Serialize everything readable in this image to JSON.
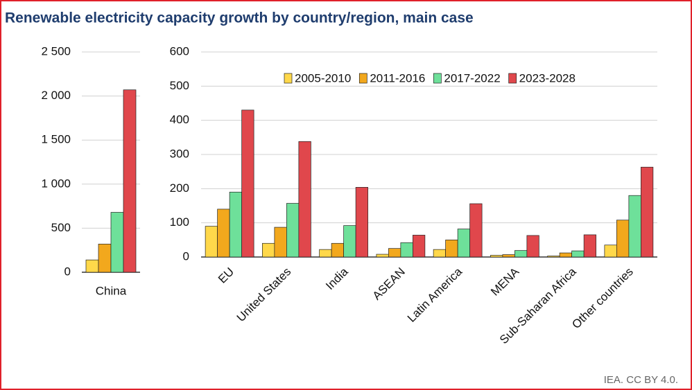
{
  "title": "Renewable electricity capacity growth by country/region, main case",
  "source": "IEA. CC BY 4.0.",
  "chart_data": [
    {
      "type": "bar",
      "categories": [
        "China"
      ],
      "series": [
        {
          "color": "#FFD84A",
          "values": [
            140
          ]
        },
        {
          "color": "#F2A81D",
          "values": [
            320
          ]
        },
        {
          "color": "#6EE09A",
          "values": [
            680
          ]
        },
        {
          "color": "#E0474C",
          "values": [
            2070
          ]
        }
      ],
      "ylim": [
        0,
        2500
      ],
      "yticks": [
        0,
        500,
        {
          "value": 1000,
          "label": "1 000"
        },
        {
          "value": 1500,
          "label": "1 500"
        },
        {
          "value": 2000,
          "label": "2 000"
        },
        {
          "value": 2500,
          "label": "2 500"
        }
      ],
      "grid": true
    },
    {
      "type": "bar",
      "categories": [
        "EU",
        "United States",
        "India",
        "ASEAN",
        "Latin America",
        "MENA",
        "Sub-Saharan Africa",
        "Other countries"
      ],
      "series": [
        {
          "name": "2005-2010",
          "color": "#FFD84A",
          "values": [
            90,
            40,
            22,
            8,
            22,
            5,
            3,
            35
          ]
        },
        {
          "name": "2011-2016",
          "color": "#F2A81D",
          "values": [
            140,
            87,
            40,
            25,
            50,
            7,
            12,
            108
          ]
        },
        {
          "name": "2017-2022",
          "color": "#6EE09A",
          "values": [
            190,
            157,
            92,
            42,
            82,
            19,
            18,
            180
          ]
        },
        {
          "name": "2023-2028",
          "color": "#E0474C",
          "values": [
            430,
            338,
            204,
            64,
            156,
            63,
            65,
            263
          ]
        }
      ],
      "ylim": [
        0,
        600
      ],
      "yticks": [
        0,
        100,
        200,
        300,
        400,
        500,
        600
      ],
      "grid": true,
      "legend": "top"
    }
  ]
}
